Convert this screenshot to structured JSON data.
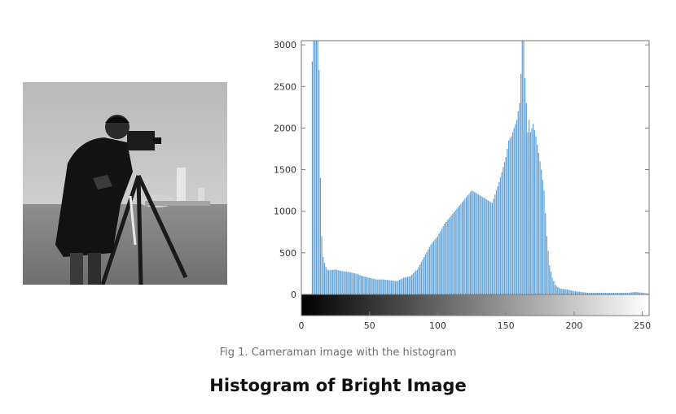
{
  "caption": "Fig 1. Cameraman image with the histogram",
  "heading": "Histogram of Bright Image",
  "image": {
    "subject": "cameraman"
  },
  "chart_data": {
    "type": "bar",
    "title": "",
    "xlabel": "",
    "ylabel": "",
    "xlim": [
      0,
      255
    ],
    "ylim": [
      0,
      3050
    ],
    "x_ticks": [
      0,
      50,
      100,
      150,
      200,
      250
    ],
    "y_ticks": [
      0,
      500,
      1000,
      1500,
      2000,
      2500,
      3000
    ],
    "grid": false,
    "legend": "none",
    "colorbar": "grayscale 0-255 below x axis",
    "bar_color": "#5b9fd6",
    "x": [
      7,
      8,
      9,
      10,
      11,
      12,
      13,
      14,
      15,
      16,
      17,
      18,
      19,
      20,
      25,
      30,
      35,
      40,
      45,
      50,
      55,
      60,
      65,
      70,
      75,
      80,
      85,
      90,
      95,
      100,
      105,
      110,
      115,
      120,
      125,
      130,
      135,
      140,
      145,
      150,
      152,
      154,
      156,
      158,
      160,
      161,
      162,
      163,
      164,
      165,
      166,
      167,
      168,
      170,
      172,
      174,
      176,
      178,
      180,
      182,
      184,
      186,
      188,
      190,
      195,
      200,
      205,
      210,
      215,
      220,
      225,
      230,
      235,
      240,
      245,
      250,
      255
    ],
    "values": [
      1250,
      2800,
      3050,
      3050,
      3050,
      3050,
      2700,
      1400,
      700,
      450,
      380,
      330,
      300,
      290,
      300,
      280,
      270,
      250,
      220,
      200,
      180,
      180,
      170,
      160,
      200,
      220,
      300,
      450,
      600,
      700,
      850,
      950,
      1050,
      1150,
      1250,
      1200,
      1150,
      1100,
      1350,
      1650,
      1850,
      1900,
      2000,
      2100,
      2300,
      2650,
      3050,
      3050,
      2600,
      2300,
      1950,
      2100,
      1950,
      2050,
      1900,
      1700,
      1500,
      1250,
      700,
      350,
      200,
      120,
      90,
      70,
      60,
      40,
      30,
      20,
      20,
      20,
      20,
      20,
      20,
      20,
      30,
      20,
      10
    ]
  }
}
